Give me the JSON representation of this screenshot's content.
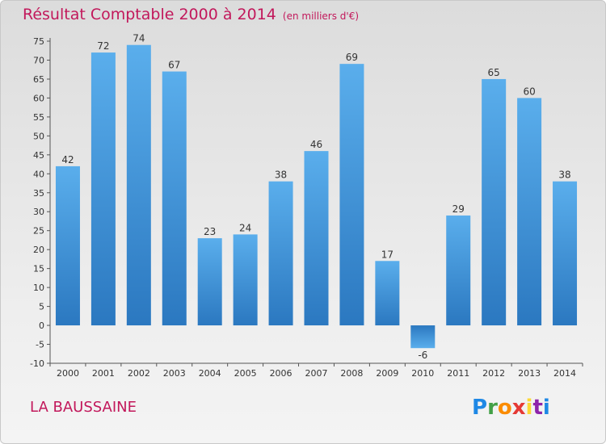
{
  "chart_data": {
    "type": "bar",
    "title": "Résultat Comptable 2000 à 2014",
    "subtitle": "(en milliers d'€)",
    "categories": [
      "2000",
      "2001",
      "2002",
      "2003",
      "2004",
      "2005",
      "2006",
      "2007",
      "2008",
      "2009",
      "2010",
      "2011",
      "2012",
      "2013",
      "2014"
    ],
    "values": [
      42,
      72,
      74,
      67,
      23,
      24,
      38,
      46,
      69,
      17,
      -6,
      29,
      65,
      60,
      38
    ],
    "xlabel": "",
    "ylabel": "",
    "ylim": [
      -10,
      75
    ],
    "yticks": [
      -10,
      -5,
      0,
      5,
      10,
      15,
      20,
      25,
      30,
      35,
      40,
      45,
      50,
      55,
      60,
      65,
      70,
      75
    ],
    "grid": false,
    "bar_color": "#3d95d8"
  },
  "footer": {
    "commune": "LA BAUSSAINE",
    "logo_text": "Proxiti"
  },
  "colors": {
    "title": "#c2185b",
    "axis": "#555555"
  }
}
